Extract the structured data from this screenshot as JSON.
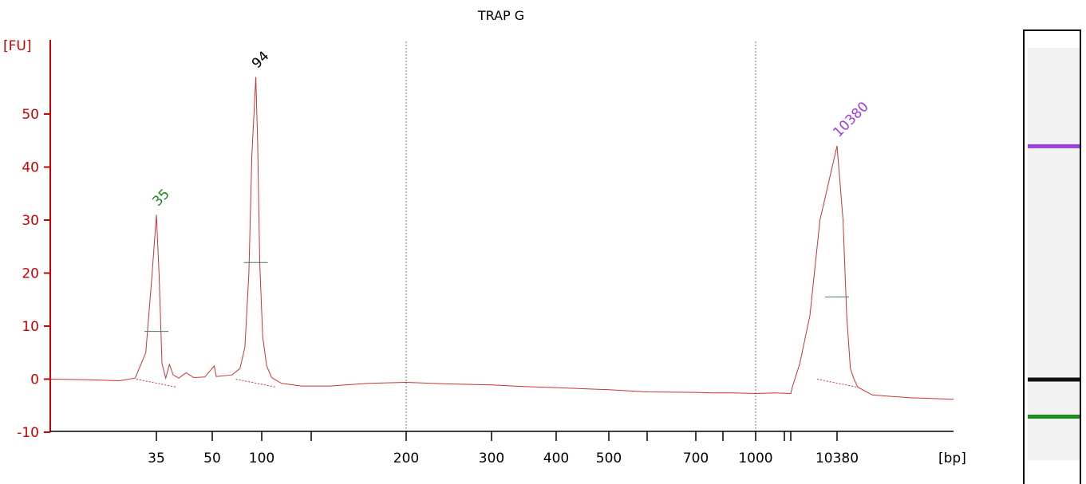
{
  "chart_data": {
    "type": "line",
    "title": "TRAP G",
    "ylabel": "[FU]",
    "xlabel": "[bp]",
    "ylim": [
      -10,
      60
    ],
    "yticks": [
      -10,
      0,
      10,
      20,
      30,
      40,
      50
    ],
    "xticks": [
      {
        "label": "35",
        "x": 35
      },
      {
        "label": "50",
        "x": 50
      },
      {
        "label": "100",
        "x": 100
      },
      {
        "label": "",
        "x": 150
      },
      {
        "label": "200",
        "x": 200
      },
      {
        "label": "300",
        "x": 300
      },
      {
        "label": "400",
        "x": 400
      },
      {
        "label": "500",
        "x": 500
      },
      {
        "label": "",
        "x": 600
      },
      {
        "label": "700",
        "x": 700
      },
      {
        "label": "",
        "x": 850
      },
      {
        "label": "1000",
        "x": 1000
      },
      {
        "label": "",
        "x": 1150
      },
      {
        "label": "",
        "x": 1200
      },
      {
        "label": "10380",
        "x": 10380
      }
    ],
    "gridlines_x": [
      200,
      1000
    ],
    "peaks": [
      {
        "label": "35",
        "x": 35,
        "height": 31,
        "color": "#1a8a1a"
      },
      {
        "label": "94",
        "x": 94,
        "height": 57,
        "color": "#000000"
      },
      {
        "label": "10380",
        "x": 10380,
        "height": 44,
        "color": "#9b3fe0"
      }
    ],
    "series": [
      {
        "color": "#cc3333",
        "points": [
          [
            15,
            0
          ],
          [
            22,
            -0.1
          ],
          [
            28,
            -0.3
          ],
          [
            31,
            0.2
          ],
          [
            33,
            5
          ],
          [
            34.2,
            20
          ],
          [
            35,
            31
          ],
          [
            35.7,
            20
          ],
          [
            36.5,
            3
          ],
          [
            37.5,
            0.2
          ],
          [
            38.5,
            2.8
          ],
          [
            39.5,
            0.8
          ],
          [
            41,
            0.2
          ],
          [
            43,
            1.2
          ],
          [
            45,
            0.3
          ],
          [
            48,
            0.4
          ],
          [
            52,
            2.5
          ],
          [
            54,
            0.5
          ],
          [
            60,
            0.6
          ],
          [
            70,
            0.8
          ],
          [
            78,
            2
          ],
          [
            83,
            6
          ],
          [
            87,
            20
          ],
          [
            90,
            42
          ],
          [
            94,
            57
          ],
          [
            96,
            44
          ],
          [
            98,
            22
          ],
          [
            101,
            8
          ],
          [
            105,
            2.5
          ],
          [
            110,
            0.3
          ],
          [
            120,
            -0.8
          ],
          [
            140,
            -1.3
          ],
          [
            160,
            -1.3
          ],
          [
            180,
            -0.8
          ],
          [
            200,
            -0.6
          ],
          [
            250,
            -0.9
          ],
          [
            300,
            -1.1
          ],
          [
            350,
            -1.4
          ],
          [
            400,
            -1.6
          ],
          [
            450,
            -1.8
          ],
          [
            500,
            -2.0
          ],
          [
            550,
            -2.2
          ],
          [
            600,
            -2.4
          ],
          [
            700,
            -2.5
          ],
          [
            800,
            -2.6
          ],
          [
            900,
            -2.6
          ],
          [
            1000,
            -2.7
          ],
          [
            1100,
            -2.6
          ],
          [
            1200,
            -2.7
          ],
          [
            1250,
            -2.6
          ],
          [
            1300,
            -2.3
          ],
          [
            1500,
            -1.5
          ],
          [
            3000,
            3
          ],
          [
            5000,
            12
          ],
          [
            7000,
            30
          ],
          [
            10380,
            44
          ],
          [
            12000,
            30
          ],
          [
            13000,
            12
          ],
          [
            14000,
            2
          ],
          [
            15000,
            0
          ],
          [
            16000,
            -1.5
          ],
          [
            20000,
            -3
          ],
          [
            30000,
            -3.5
          ],
          [
            42000,
            -3.8
          ]
        ]
      }
    ],
    "gel_bands": [
      {
        "color": "#9b3fe0",
        "level": 44
      },
      {
        "color": "#111111",
        "level": 0
      },
      {
        "color": "#1a8a1a",
        "level": -7
      }
    ]
  }
}
